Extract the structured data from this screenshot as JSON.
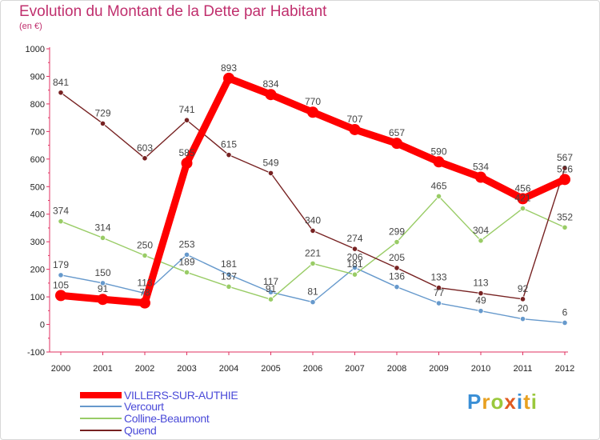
{
  "title": "Evolution du Montant de la Dette par Habitant",
  "subtitle": "(en €)",
  "logo_text": "Proxiti",
  "chart_data": {
    "type": "line",
    "title": "Evolution du Montant de la Dette par Habitant",
    "subtitle": "(en €)",
    "x": [
      "2000",
      "2001",
      "2002",
      "2003",
      "2004",
      "2005",
      "2006",
      "2007",
      "2008",
      "2009",
      "2010",
      "2011",
      "2012"
    ],
    "ylim": [
      -100,
      1000
    ],
    "yticks": [
      -100,
      0,
      100,
      200,
      300,
      400,
      500,
      600,
      700,
      800,
      900,
      1000
    ],
    "grid": false,
    "legend_position": "bottom-left",
    "series": [
      {
        "name": "VILLERS-SUR-AUTHIE",
        "color": "#ff0000",
        "values": [
          105,
          91,
          78,
          585,
          893,
          834,
          770,
          707,
          657,
          590,
          534,
          456,
          526
        ]
      },
      {
        "name": "Vercourt",
        "color": "#6699cc",
        "values": [
          179,
          150,
          113,
          253,
          181,
          117,
          81,
          206,
          136,
          77,
          49,
          20,
          6
        ]
      },
      {
        "name": "Colline-Beaumont",
        "color": "#99cc66",
        "values": [
          374,
          314,
          250,
          189,
          137,
          91,
          221,
          181,
          299,
          465,
          304,
          421,
          352
        ]
      },
      {
        "name": "Quend",
        "color": "#772222",
        "values": [
          841,
          729,
          603,
          741,
          615,
          549,
          340,
          274,
          205,
          133,
          113,
          92,
          567
        ]
      }
    ]
  }
}
